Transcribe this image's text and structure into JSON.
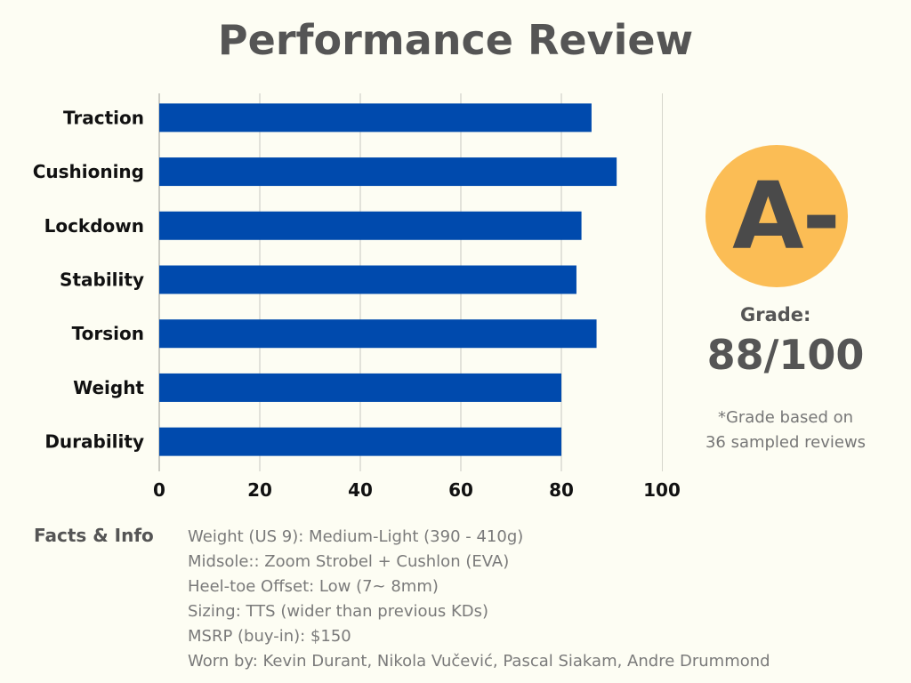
{
  "title": "Performance Review",
  "chart_data": {
    "type": "bar",
    "orientation": "horizontal",
    "categories": [
      "Traction",
      "Cushioning",
      "Lockdown",
      "Stability",
      "Torsion",
      "Weight",
      "Durability"
    ],
    "values": [
      86,
      91,
      84,
      83,
      87,
      80,
      80
    ],
    "xlim": [
      0,
      100
    ],
    "x_ticks": [
      0,
      20,
      40,
      60,
      80,
      100
    ],
    "grid": true,
    "bar_color": "#004aad"
  },
  "grade": {
    "letter": "A-",
    "label": "Grade:",
    "score": "88/100",
    "note_line1": "*Grade based on",
    "note_line2": "36 sampled reviews",
    "circle_color": "#fbbd55"
  },
  "facts": {
    "title": "Facts & Info",
    "items": [
      "Weight (US 9): Medium-Light (390 - 410g)",
      "Midsole:: Zoom Strobel + Cushlon (EVA)",
      "Heel-toe Offset:  Low (7~ 8mm)",
      "Sizing: TTS (wider than previous KDs)",
      "MSRP (buy-in):  $150",
      "Worn by:  Kevin Durant, Nikola Vučević, Pascal Siakam, Andre Drummond"
    ]
  }
}
